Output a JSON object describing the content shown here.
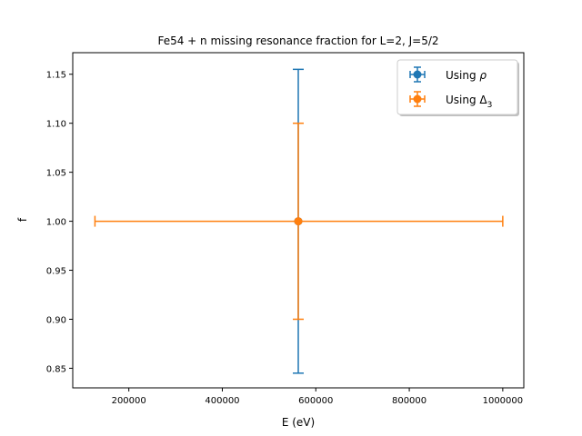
{
  "chart_data": {
    "type": "scatter",
    "title": "Fe54 + n missing resonance fraction for L=2, J=5/2",
    "xlabel": "E (eV)",
    "ylabel": "f",
    "xlim": [
      80000,
      1045000
    ],
    "ylim": [
      0.83,
      1.172
    ],
    "xticks": [
      200000,
      400000,
      600000,
      800000,
      1000000
    ],
    "xtick_labels": [
      "200000",
      "400000",
      "600000",
      "800000",
      "1000000"
    ],
    "yticks": [
      0.85,
      0.9,
      0.95,
      1.0,
      1.05,
      1.1,
      1.15
    ],
    "ytick_labels": [
      "0.85",
      "0.90",
      "0.95",
      "1.00",
      "1.05",
      "1.10",
      "1.15"
    ],
    "grid": false,
    "legend_position": "top-right",
    "series": [
      {
        "name": "Using ρ",
        "label_main": "Using ",
        "label_symbol": "ρ",
        "label_sub": "",
        "color": "#1f77b4",
        "x": 562500,
        "y": 1.0,
        "xerr": [
          0,
          0
        ],
        "yerr": [
          0.155,
          0.155
        ]
      },
      {
        "name": "Using Δ3",
        "label_main": "Using ",
        "label_symbol": "Δ",
        "label_sub": "3",
        "color": "#ff7f0e",
        "x": 562500,
        "y": 1.0,
        "xerr": [
          435000,
          437500
        ],
        "yerr": [
          0.1,
          0.1
        ]
      }
    ]
  }
}
